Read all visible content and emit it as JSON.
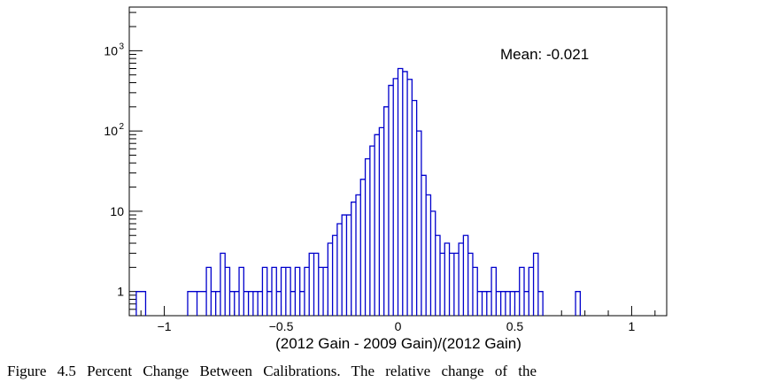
{
  "chart_data": {
    "type": "histogram",
    "xlabel": "(2012 Gain - 2009 Gain)/(2012 Gain)",
    "ylabel": "",
    "xlim": [
      -1.15,
      1.15
    ],
    "ylim": [
      0.5,
      3500
    ],
    "log_y": true,
    "grid": false,
    "x_ticks": [
      {
        "value": -1,
        "label": "−1"
      },
      {
        "value": -0.5,
        "label": "−0.5"
      },
      {
        "value": 0,
        "label": "0"
      },
      {
        "value": 0.5,
        "label": "0.5"
      },
      {
        "value": 1,
        "label": "1"
      }
    ],
    "y_ticks": [
      {
        "value": 1,
        "label": "1"
      },
      {
        "value": 10,
        "label": "10"
      },
      {
        "value": 100,
        "label": "10",
        "exponent": "2"
      },
      {
        "value": 1000,
        "label": "10",
        "exponent": "3"
      }
    ],
    "annotation": "Mean: -0.021",
    "line_color": "#0000cc",
    "bins": [
      [
        -1.12,
        -1.08,
        1
      ],
      [
        -0.9,
        -0.86,
        1
      ],
      [
        -0.86,
        -0.82,
        1
      ],
      [
        -0.82,
        -0.8,
        2
      ],
      [
        -0.8,
        -0.78,
        1
      ],
      [
        -0.78,
        -0.76,
        1
      ],
      [
        -0.76,
        -0.74,
        3
      ],
      [
        -0.74,
        -0.72,
        2
      ],
      [
        -0.72,
        -0.7,
        1
      ],
      [
        -0.7,
        -0.68,
        1
      ],
      [
        -0.68,
        -0.66,
        2
      ],
      [
        -0.66,
        -0.64,
        1
      ],
      [
        -0.64,
        -0.62,
        1
      ],
      [
        -0.62,
        -0.6,
        1
      ],
      [
        -0.6,
        -0.58,
        1
      ],
      [
        -0.58,
        -0.56,
        2
      ],
      [
        -0.56,
        -0.54,
        1
      ],
      [
        -0.54,
        -0.52,
        2
      ],
      [
        -0.52,
        -0.5,
        1
      ],
      [
        -0.5,
        -0.48,
        2
      ],
      [
        -0.48,
        -0.46,
        2
      ],
      [
        -0.46,
        -0.44,
        1
      ],
      [
        -0.44,
        -0.42,
        2
      ],
      [
        -0.42,
        -0.4,
        1
      ],
      [
        -0.4,
        -0.38,
        2
      ],
      [
        -0.38,
        -0.36,
        3
      ],
      [
        -0.36,
        -0.34,
        3
      ],
      [
        -0.34,
        -0.32,
        2
      ],
      [
        -0.32,
        -0.3,
        2
      ],
      [
        -0.3,
        -0.28,
        4
      ],
      [
        -0.28,
        -0.26,
        5
      ],
      [
        -0.26,
        -0.24,
        7
      ],
      [
        -0.24,
        -0.22,
        9
      ],
      [
        -0.22,
        -0.2,
        9
      ],
      [
        -0.2,
        -0.18,
        13
      ],
      [
        -0.18,
        -0.16,
        16
      ],
      [
        -0.16,
        -0.14,
        25
      ],
      [
        -0.14,
        -0.12,
        45
      ],
      [
        -0.12,
        -0.1,
        65
      ],
      [
        -0.1,
        -0.08,
        90
      ],
      [
        -0.08,
        -0.06,
        110
      ],
      [
        -0.06,
        -0.04,
        200
      ],
      [
        -0.04,
        -0.02,
        370
      ],
      [
        -0.02,
        0.0,
        450
      ],
      [
        0.0,
        0.02,
        600
      ],
      [
        0.02,
        0.04,
        550
      ],
      [
        0.04,
        0.06,
        440
      ],
      [
        0.06,
        0.08,
        240
      ],
      [
        0.08,
        0.1,
        100
      ],
      [
        0.1,
        0.12,
        28
      ],
      [
        0.12,
        0.14,
        16
      ],
      [
        0.14,
        0.16,
        10
      ],
      [
        0.16,
        0.18,
        5
      ],
      [
        0.18,
        0.2,
        3
      ],
      [
        0.2,
        0.22,
        4
      ],
      [
        0.22,
        0.24,
        3
      ],
      [
        0.24,
        0.26,
        3
      ],
      [
        0.26,
        0.28,
        4
      ],
      [
        0.28,
        0.3,
        5
      ],
      [
        0.3,
        0.32,
        3
      ],
      [
        0.32,
        0.34,
        2
      ],
      [
        0.34,
        0.36,
        1
      ],
      [
        0.36,
        0.38,
        1
      ],
      [
        0.38,
        0.4,
        1
      ],
      [
        0.4,
        0.42,
        2
      ],
      [
        0.42,
        0.44,
        1
      ],
      [
        0.44,
        0.46,
        1
      ],
      [
        0.46,
        0.48,
        1
      ],
      [
        0.48,
        0.5,
        1
      ],
      [
        0.5,
        0.52,
        1
      ],
      [
        0.52,
        0.54,
        2
      ],
      [
        0.54,
        0.56,
        1
      ],
      [
        0.56,
        0.58,
        2
      ],
      [
        0.58,
        0.6,
        3
      ],
      [
        0.6,
        0.62,
        1
      ],
      [
        0.76,
        0.78,
        1
      ]
    ]
  },
  "caption": "Figure 4.5 Percent Change Between Calibrations. The relative change of the"
}
